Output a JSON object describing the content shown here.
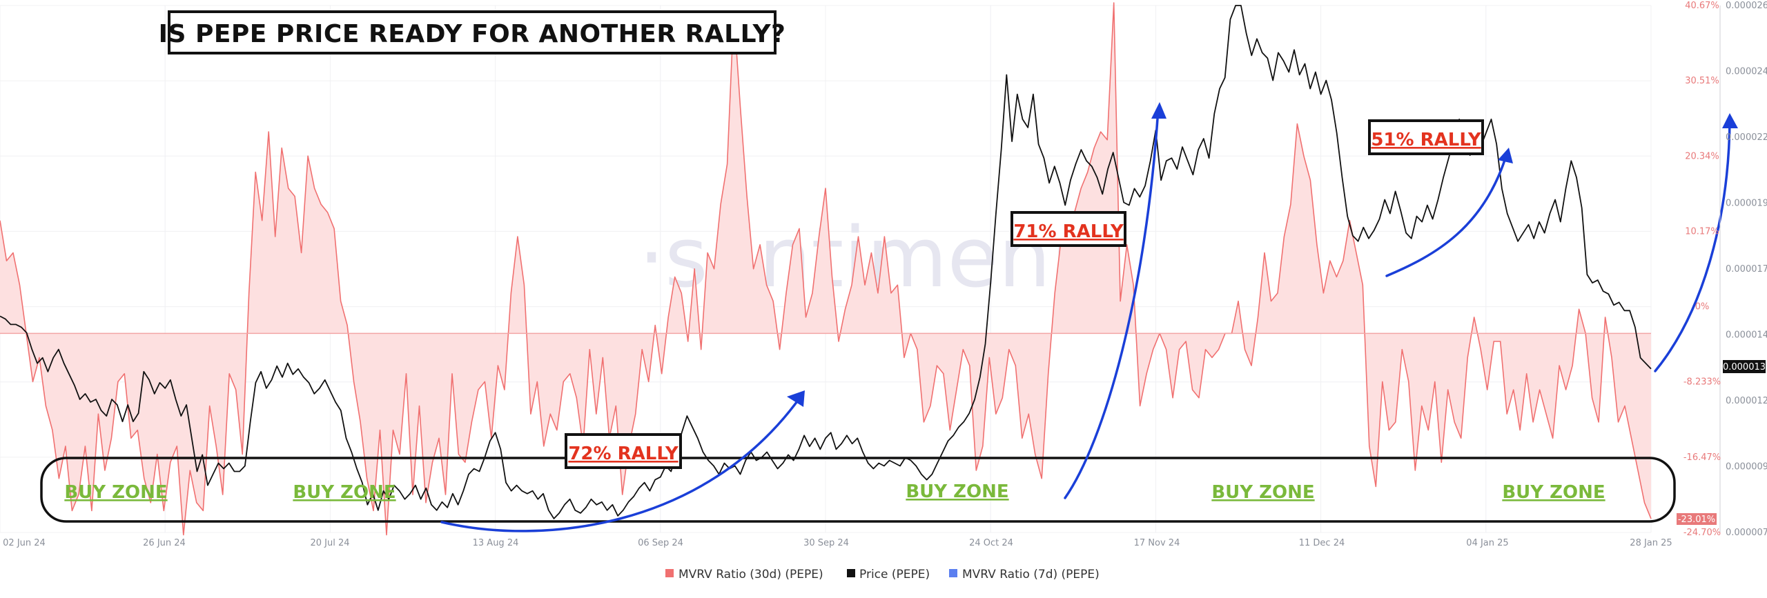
{
  "title": "IS PEPE PRICE READY FOR ANOTHER RALLY?",
  "watermark": "·santiment",
  "rally_labels": [
    "72% RALLY",
    "71% RALLY",
    "51% RALLY"
  ],
  "buy_zone_label": "BUY ZONE",
  "current_price_badge": "0.000013",
  "min_ratio_badge": "-23.01%",
  "legend": [
    {
      "label": "MVRV Ratio (30d) (PEPE)",
      "color": "#f07070"
    },
    {
      "label": "Price (PEPE)",
      "color": "#111111"
    },
    {
      "label": "MVRV Ratio (7d) (PEPE)",
      "color": "#5b7ff0"
    }
  ],
  "colors": {
    "mvrv": "#f07070",
    "mvrv_fill": "#fde0e0",
    "price": "#111111",
    "arrow": "#1a3fd8",
    "rally": "#e3331f",
    "zone": "#7ab93b"
  },
  "chart_data": {
    "type": "line",
    "x_tick_labels": [
      "02 Jun 24",
      "26 Jun 24",
      "20 Jul 24",
      "13 Aug 24",
      "06 Sep 24",
      "30 Sep 24",
      "24 Oct 24",
      "17 Nov 24",
      "11 Dec 24",
      "04 Jan 25",
      "28 Jan 25"
    ],
    "mvrv_axis_labels": [
      "40.67%",
      "30.51%",
      "20.34%",
      "10.17%",
      "0%",
      "-8.233%",
      "-16.47%",
      "-24.70%"
    ],
    "mvrv_ylim": [
      -24.7,
      40.67
    ],
    "price_axis_labels": [
      "0.000026",
      "0.000024",
      "0.000022",
      "0.000019",
      "0.000017",
      "0.000014",
      "0.000012",
      "0.000009",
      "0.000007"
    ],
    "price_ylim": [
      7e-06,
      2.6e-05
    ],
    "current_price": 1.3e-05,
    "series": [
      {
        "name": "MVRV Ratio (30d) (PEPE)",
        "unit": "%",
        "values": [
          14,
          9,
          10,
          6,
          0,
          -6,
          -3,
          -9,
          -12,
          -18,
          -14,
          -22,
          -20,
          -14,
          -22,
          -10,
          -17,
          -13,
          -6,
          -5,
          -13,
          -12,
          -18,
          -21,
          -15,
          -22,
          -16,
          -14,
          -25,
          -17,
          -21,
          -22,
          -9,
          -14,
          -20,
          -5,
          -7,
          -15,
          5,
          20,
          14,
          25,
          12,
          23,
          18,
          17,
          10,
          22,
          18,
          16,
          15,
          13,
          4,
          1,
          -6,
          -11,
          -18,
          -22,
          -12,
          -25,
          -12,
          -15,
          -5,
          -20,
          -9,
          -21,
          -16,
          -13,
          -20,
          -5,
          -15,
          -16,
          -11,
          -7,
          -6,
          -13,
          -4,
          -7,
          5,
          12,
          6,
          -10,
          -6,
          -14,
          -10,
          -12,
          -6,
          -5,
          -8,
          -14,
          -2,
          -10,
          -3,
          -13,
          -9,
          -20,
          -14,
          -10,
          -2,
          -6,
          1,
          -5,
          2,
          7,
          5,
          -1,
          8,
          -2,
          10,
          8,
          16,
          21,
          40,
          28,
          17,
          8,
          11,
          6,
          4,
          -2,
          5,
          11,
          13,
          2,
          5,
          12,
          18,
          7,
          -1,
          3,
          6,
          12,
          6,
          10,
          5,
          12,
          5,
          6,
          -3,
          0,
          -2,
          -11,
          -9,
          -4,
          -5,
          -12,
          -7,
          -2,
          -4,
          -17,
          -14,
          -3,
          -10,
          -8,
          -2,
          -4,
          -13,
          -10,
          -15,
          -18,
          -5,
          5,
          12,
          11,
          15,
          18,
          20,
          23,
          25,
          24,
          41,
          4,
          11,
          6,
          -9,
          -5,
          -2,
          0,
          -2,
          -8,
          -2,
          -1,
          -7,
          -8,
          -2,
          -3,
          -2,
          0,
          0,
          4,
          -2,
          -4,
          2,
          10,
          4,
          5,
          12,
          16,
          26,
          22,
          19,
          11,
          5,
          9,
          7,
          9,
          14,
          10,
          6,
          -14,
          -19,
          -6,
          -12,
          -11,
          -2,
          -6,
          -17,
          -9,
          -12,
          -6,
          -16,
          -7,
          -11,
          -13,
          -3,
          2,
          -2,
          -7,
          -1,
          -1,
          -10,
          -7,
          -12,
          -5,
          -11,
          -7,
          -10,
          -13,
          -4,
          -7,
          -4,
          3,
          0,
          -8,
          -11,
          2,
          -3,
          -11,
          -9,
          -13,
          -17,
          -21,
          -23
        ]
      },
      {
        "name": "Price (PEPE)",
        "unit": "USD",
        "values": [
          1.48e-05,
          1.47e-05,
          1.45e-05,
          1.45e-05,
          1.44e-05,
          1.42e-05,
          1.36e-05,
          1.31e-05,
          1.33e-05,
          1.28e-05,
          1.33e-05,
          1.36e-05,
          1.31e-05,
          1.27e-05,
          1.23e-05,
          1.18e-05,
          1.2e-05,
          1.17e-05,
          1.18e-05,
          1.14e-05,
          1.12e-05,
          1.18e-05,
          1.16e-05,
          1.1e-05,
          1.16e-05,
          1.1e-05,
          1.13e-05,
          1.28e-05,
          1.25e-05,
          1.2e-05,
          1.24e-05,
          1.22e-05,
          1.25e-05,
          1.18e-05,
          1.12e-05,
          1.16e-05,
          1.04e-05,
          9.2e-06,
          9.8e-06,
          8.7e-06,
          9.1e-06,
          9.5e-06,
          9.3e-06,
          9.5e-06,
          9.2e-06,
          9.2e-06,
          9.4e-06,
          1.1e-05,
          1.24e-05,
          1.28e-05,
          1.22e-05,
          1.25e-05,
          1.3e-05,
          1.26e-05,
          1.31e-05,
          1.27e-05,
          1.29e-05,
          1.26e-05,
          1.24e-05,
          1.2e-05,
          1.22e-05,
          1.25e-05,
          1.21e-05,
          1.17e-05,
          1.14e-05,
          1.04e-05,
          9.9e-06,
          9.3e-06,
          8.8e-06,
          8e-06,
          8.4e-06,
          7.8e-06,
          8.5e-06,
          8.2e-06,
          8.7e-06,
          8.5e-06,
          8.2e-06,
          8.4e-06,
          8.7e-06,
          8.2e-06,
          8.6e-06,
          8e-06,
          7.8e-06,
          8.1e-06,
          7.9e-06,
          8.4e-06,
          8e-06,
          8.5e-06,
          9.1e-06,
          9.3e-06,
          9.2e-06,
          9.7e-06,
          1.03e-05,
          1.06e-05,
          1e-05,
          8.8e-06,
          8.5e-06,
          8.7e-06,
          8.5e-06,
          8.4e-06,
          8.5e-06,
          8.2e-06,
          8.4e-06,
          7.8e-06,
          7.5e-06,
          7.7e-06,
          8e-06,
          8.2e-06,
          7.8e-06,
          7.7e-06,
          7.9e-06,
          8.2e-06,
          8e-06,
          8.1e-06,
          7.8e-06,
          8e-06,
          7.6e-06,
          7.8e-06,
          8.1e-06,
          8.3e-06,
          8.6e-06,
          8.8e-06,
          8.5e-06,
          8.9e-06,
          9e-06,
          9.4e-06,
          9.2e-06,
          9.8e-06,
          1.06e-05,
          1.12e-05,
          1.08e-05,
          1.04e-05,
          9.9e-06,
          9.6e-06,
          9.4e-06,
          9.1e-06,
          9.5e-06,
          9.3e-06,
          9.4e-06,
          9.1e-06,
          9.6e-06,
          9.9e-06,
          9.6e-06,
          9.7e-06,
          9.9e-06,
          9.6e-06,
          9.3e-06,
          9.5e-06,
          9.8e-06,
          9.6e-06,
          1e-05,
          1.05e-05,
          1.01e-05,
          1.04e-05,
          1e-05,
          1.04e-05,
          1.06e-05,
          1e-05,
          1.02e-05,
          1.05e-05,
          1.02e-05,
          1.04e-05,
          9.9e-06,
          9.5e-06,
          9.3e-06,
          9.5e-06,
          9.4e-06,
          9.6e-06,
          9.5e-06,
          9.4e-06,
          9.7e-06,
          9.6e-06,
          9.4e-06,
          9.1e-06,
          8.9e-06,
          9.1e-06,
          9.5e-06,
          9.9e-06,
          1.03e-05,
          1.05e-05,
          1.08e-05,
          1.1e-05,
          1.13e-05,
          1.18e-05,
          1.26e-05,
          1.38e-05,
          1.6e-05,
          1.85e-05,
          2.08e-05,
          2.35e-05,
          2.11e-05,
          2.28e-05,
          2.19e-05,
          2.16e-05,
          2.28e-05,
          2.1e-05,
          2.05e-05,
          1.96e-05,
          2.02e-05,
          1.96e-05,
          1.88e-05,
          1.97e-05,
          2.03e-05,
          2.08e-05,
          2.04e-05,
          2.02e-05,
          1.98e-05,
          1.92e-05,
          2.01e-05,
          2.07e-05,
          1.98e-05,
          1.89e-05,
          1.88e-05,
          1.94e-05,
          1.91e-05,
          1.95e-05,
          2.04e-05,
          2.15e-05,
          1.97e-05,
          2.04e-05,
          2.05e-05,
          2.01e-05,
          2.09e-05,
          2.04e-05,
          1.99e-05,
          2.08e-05,
          2.12e-05,
          2.05e-05,
          2.21e-05,
          2.3e-05,
          2.34e-05,
          2.55e-05,
          2.6e-05,
          2.6e-05,
          2.5e-05,
          2.42e-05,
          2.48e-05,
          2.43e-05,
          2.41e-05,
          2.33e-05,
          2.43e-05,
          2.4e-05,
          2.36e-05,
          2.44e-05,
          2.35e-05,
          2.39e-05,
          2.3e-05,
          2.36e-05,
          2.28e-05,
          2.33e-05,
          2.26e-05,
          2.14e-05,
          1.98e-05,
          1.84e-05,
          1.77e-05,
          1.75e-05,
          1.8e-05,
          1.76e-05,
          1.79e-05,
          1.83e-05,
          1.9e-05,
          1.85e-05,
          1.93e-05,
          1.86e-05,
          1.78e-05,
          1.76e-05,
          1.84e-05,
          1.82e-05,
          1.88e-05,
          1.83e-05,
          1.9e-05,
          1.98e-05,
          2.05e-05,
          2.12e-05,
          2.19e-05,
          2.13e-05,
          2.06e-05,
          2.1e-05,
          2.09e-05,
          2.14e-05,
          2.19e-05,
          2.1e-05,
          1.94e-05,
          1.85e-05,
          1.8e-05,
          1.75e-05,
          1.78e-05,
          1.81e-05,
          1.76e-05,
          1.82e-05,
          1.78e-05,
          1.85e-05,
          1.9e-05,
          1.82e-05,
          1.94e-05,
          2.04e-05,
          1.98e-05,
          1.87e-05,
          1.63e-05,
          1.6e-05,
          1.61e-05,
          1.57e-05,
          1.56e-05,
          1.52e-05,
          1.53e-05,
          1.5e-05,
          1.5e-05,
          1.44e-05,
          1.33e-05,
          1.31e-05,
          1.29e-05
        ]
      }
    ],
    "annotations": [
      "72% RALLY",
      "71% RALLY",
      "51% RALLY",
      "BUY ZONE"
    ]
  }
}
